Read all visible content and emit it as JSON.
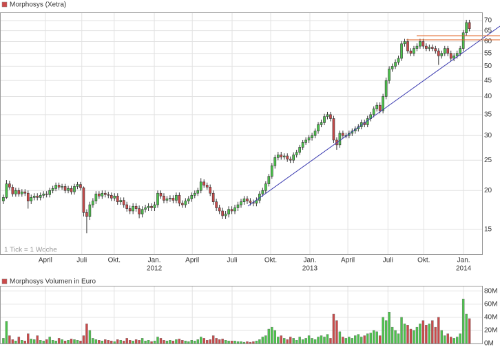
{
  "chart_data": [
    {
      "type": "candlestick",
      "title": "Morphosys (Xetra)",
      "annotation": "1 Tick = 1 Woche",
      "log_scale": true,
      "grid": true,
      "up_color": "#4cc44c",
      "down_color": "#cc4a4a",
      "xlim": [
        -1.1,
        155.1
      ],
      "xticks": [
        {
          "value": 13.6,
          "label": "April"
        },
        {
          "value": 25.4,
          "label": "Juli"
        },
        {
          "value": 35.9,
          "label": "Okt."
        },
        {
          "value": 48.9,
          "label": "Jan."
        },
        {
          "value": 61.2,
          "label": "April"
        },
        {
          "value": 74.1,
          "label": "Juli"
        },
        {
          "value": 86.6,
          "label": "Okt."
        },
        {
          "value": 99.3,
          "label": "Jan."
        },
        {
          "value": 111.6,
          "label": "April"
        },
        {
          "value": 124.6,
          "label": "Juli"
        },
        {
          "value": 136.2,
          "label": "Okt."
        },
        {
          "value": 149.1,
          "label": "Jan."
        }
      ],
      "year_labels": [
        {
          "value": 48.9,
          "label": "2012"
        },
        {
          "value": 99.3,
          "label": "2013"
        },
        {
          "value": 149.1,
          "label": "2014"
        }
      ],
      "ylim": [
        12.5,
        74.4
      ],
      "yticks": [
        15,
        20,
        25,
        30,
        35,
        40,
        45,
        50,
        55,
        60,
        65,
        70
      ],
      "open": [
        18.5,
        19,
        21,
        20.5,
        19.5,
        20,
        19.5,
        19.8,
        19.6,
        18.5,
        19,
        19.2,
        19,
        19.3,
        19.5,
        19.4,
        20,
        20.3,
        20.8,
        20.5,
        20.6,
        20,
        20.3,
        19.8,
        20.6,
        20.9,
        20.4,
        17,
        16.5,
        18,
        18.5,
        19.5,
        19.2,
        19.6,
        19.4,
        19.3,
        18.9,
        19.2,
        18.4,
        18.6,
        18,
        17.5,
        17.2,
        17.8,
        17.5,
        16.8,
        17.4,
        17.6,
        17.8,
        17.6,
        18,
        19.6,
        19.2,
        18.6,
        18.8,
        18.9,
        18.6,
        19.3,
        18.2,
        18,
        18.5,
        18.8,
        19.3,
        19.6,
        20,
        21.3,
        20.8,
        20.5,
        19.6,
        18.4,
        17.6,
        17.2,
        16.6,
        16.8,
        17.4,
        17.2,
        17.6,
        18,
        18.4,
        18.8,
        18.5,
        18.3,
        18.2,
        18.6,
        19.5,
        20,
        21,
        22.2,
        24,
        25.5,
        26,
        25.6,
        25.8,
        25.2,
        25,
        26,
        26.5,
        27.5,
        28.5,
        29,
        29.5,
        30,
        31,
        32.5,
        33,
        34.5,
        35,
        34,
        29,
        28,
        30.5,
        30,
        30,
        30.5,
        31,
        31.5,
        32,
        33,
        32.5,
        34,
        35,
        36.5,
        37.5,
        36,
        40,
        45,
        49,
        50,
        51.5,
        53,
        59,
        60,
        56,
        55,
        57,
        58,
        60,
        58,
        57,
        57.5,
        57,
        56,
        54,
        55,
        57,
        55,
        53,
        54,
        55,
        57,
        64,
        69
      ],
      "high": [
        19.4,
        21.6,
        21.5,
        20.9,
        20.4,
        20.4,
        20.2,
        20.2,
        20,
        19.4,
        19.6,
        19.6,
        19.7,
        19.9,
        19.9,
        20.4,
        20.7,
        21.2,
        21.2,
        21,
        21,
        20.7,
        20.7,
        21,
        21.3,
        21.3,
        20.6,
        17.4,
        18.4,
        18.9,
        19.9,
        19.9,
        20,
        20,
        19.8,
        19.7,
        19.6,
        19.6,
        19,
        19,
        18.4,
        17.9,
        18.2,
        18.2,
        17.9,
        17.8,
        18,
        18.2,
        18.2,
        18.4,
        20,
        20,
        19.6,
        19.2,
        19.3,
        19.3,
        19.7,
        19.7,
        18.6,
        18.9,
        19.2,
        19.7,
        20,
        20.4,
        21.9,
        21.7,
        21.2,
        20.9,
        20,
        18.8,
        18,
        17.6,
        17.2,
        17.8,
        17.8,
        18,
        18.4,
        18.8,
        19.2,
        19.2,
        18.9,
        18.7,
        19,
        19.9,
        20.4,
        21.4,
        22.6,
        24.5,
        26,
        26.6,
        26.6,
        26.3,
        26.3,
        25.7,
        26.5,
        27,
        28,
        29,
        29.6,
        30.1,
        30.6,
        31.6,
        33.1,
        33.7,
        35.2,
        35.7,
        35.7,
        34.7,
        29.6,
        31.1,
        31.1,
        30.6,
        31.1,
        31.6,
        32.1,
        32.6,
        33.7,
        33.7,
        34.7,
        35.7,
        37.2,
        38.3,
        38.3,
        40.8,
        46,
        50,
        51,
        52.6,
        54.1,
        60.2,
        61.2,
        61.2,
        57.1,
        58.1,
        59.2,
        61.2,
        61.2,
        59.2,
        58.7,
        58.7,
        58.1,
        57.1,
        56.1,
        58.1,
        58.1,
        56.1,
        55.1,
        56.1,
        58.1,
        65.3,
        70.4,
        70.4
      ],
      "low": [
        18.1,
        18.8,
        20.1,
        19.1,
        19.1,
        19.1,
        19.1,
        19.2,
        17.5,
        18.1,
        18.6,
        18.6,
        18.6,
        18.9,
        19,
        19,
        19.6,
        19.9,
        20.1,
        20.1,
        19.6,
        19.6,
        19.4,
        19.4,
        20.2,
        20,
        16.5,
        14.6,
        16.1,
        17.6,
        18.1,
        18.8,
        18.8,
        19,
        18.9,
        18.5,
        18.5,
        18,
        18,
        17.6,
        17.1,
        16.8,
        16.8,
        17.1,
        16.3,
        16.4,
        17,
        17.2,
        17.2,
        17.2,
        17.6,
        18.8,
        18.2,
        18.2,
        18.4,
        18.2,
        18.2,
        17.8,
        17.6,
        17.6,
        18.1,
        18.4,
        18.9,
        19.2,
        19.6,
        20.4,
        20.1,
        19.2,
        18,
        17.2,
        16.8,
        16.2,
        16.2,
        16.4,
        16.8,
        16.8,
        17.2,
        17.6,
        18,
        18.1,
        17.9,
        17.8,
        17.8,
        18.2,
        19.1,
        19.6,
        20.6,
        21.8,
        23.5,
        25,
        25.1,
        25.1,
        24.7,
        24.5,
        24.5,
        25.5,
        26,
        27,
        28,
        28.4,
        28.9,
        29.4,
        30.4,
        31.9,
        32.4,
        33.8,
        33.3,
        28.4,
        27,
        27.4,
        29.4,
        29.4,
        29.4,
        29.9,
        30.4,
        30.9,
        31.4,
        31.9,
        31.9,
        33.3,
        34.3,
        35.8,
        35.3,
        35.3,
        39.2,
        44,
        48,
        49,
        50.5,
        52,
        57.8,
        54.9,
        53.9,
        53.9,
        55.9,
        56.9,
        56.9,
        55.9,
        55.9,
        55.9,
        54.9,
        50.5,
        52.9,
        53.9,
        53.9,
        51.9,
        51.9,
        52.9,
        53.9,
        55.9,
        62.7,
        64.7
      ],
      "close": [
        19,
        21,
        20.5,
        19.5,
        20,
        19.5,
        19.8,
        19.6,
        18.5,
        19,
        19.2,
        19,
        19.3,
        19.5,
        19.4,
        20,
        20.3,
        20.8,
        20.5,
        20.6,
        20,
        20.3,
        19.8,
        20.6,
        20.9,
        20.4,
        17,
        16.5,
        18,
        18.5,
        19.5,
        19.2,
        19.6,
        19.4,
        19.3,
        18.9,
        19.2,
        18.4,
        18.6,
        18,
        17.5,
        17.2,
        17.8,
        17.5,
        16.8,
        17.4,
        17.6,
        17.8,
        17.6,
        18,
        19.6,
        19.2,
        18.6,
        18.8,
        18.9,
        18.6,
        19.3,
        18.2,
        18,
        18.5,
        18.8,
        19.3,
        19.6,
        20,
        21.3,
        20.8,
        20.5,
        19.6,
        18.4,
        17.6,
        17.2,
        16.6,
        16.8,
        17.4,
        17.2,
        17.6,
        18,
        18.4,
        18.8,
        18.5,
        18.3,
        18.2,
        18.6,
        19.5,
        20,
        21,
        22.2,
        24,
        25.5,
        26,
        25.6,
        25.8,
        25.2,
        25,
        26,
        26.5,
        27.5,
        28.5,
        29,
        29.5,
        30,
        31,
        32.5,
        33,
        34.5,
        35,
        34,
        29,
        28,
        30.5,
        30,
        30,
        30.5,
        31,
        31.5,
        32,
        33,
        32.5,
        34,
        35,
        36.5,
        37.5,
        36,
        40,
        45,
        49,
        50,
        51.5,
        53,
        59,
        60,
        56,
        55,
        57,
        58,
        60,
        58,
        57,
        57.5,
        57,
        56,
        54,
        55,
        57,
        55,
        53,
        54,
        55,
        57,
        64,
        69,
        66
      ]
    },
    {
      "type": "bar",
      "title": "Morphosys Volumen in Euro",
      "grid": true,
      "xlim": [
        -1.1,
        155.1
      ],
      "ylim": [
        0,
        88
      ],
      "yticks": [
        {
          "value": 0,
          "label": "0M"
        },
        {
          "value": 20,
          "label": "20M"
        },
        {
          "value": 40,
          "label": "40M"
        },
        {
          "value": 60,
          "label": "60M"
        },
        {
          "value": 80,
          "label": "80M"
        }
      ],
      "values": [
        8,
        34,
        12,
        6,
        4,
        10,
        5,
        4,
        15,
        7,
        6,
        12,
        5,
        4,
        6,
        10,
        5,
        4,
        8,
        6,
        4,
        5,
        7,
        6,
        5,
        4,
        12,
        30,
        20,
        8,
        6,
        5,
        4,
        6,
        5,
        4,
        3,
        6,
        5,
        4,
        8,
        5,
        4,
        6,
        5,
        8,
        4,
        5,
        3,
        4,
        10,
        8,
        5,
        4,
        5,
        4,
        6,
        7,
        5,
        4,
        3,
        5,
        4,
        6,
        10,
        8,
        5,
        6,
        12,
        8,
        6,
        7,
        5,
        4,
        4,
        4,
        3,
        3,
        2,
        3,
        2,
        3,
        4,
        6,
        10,
        12,
        22,
        25,
        20,
        10,
        12,
        8,
        6,
        10,
        8,
        5,
        10,
        6,
        8,
        12,
        8,
        6,
        10,
        12,
        10,
        14,
        8,
        45,
        35,
        18,
        10,
        8,
        10,
        8,
        12,
        14,
        10,
        12,
        15,
        16,
        20,
        18,
        12,
        40,
        35,
        48,
        25,
        20,
        15,
        40,
        30,
        28,
        22,
        20,
        25,
        30,
        35,
        28,
        30,
        35,
        25,
        40,
        20,
        12,
        15,
        10,
        8,
        10,
        15,
        68,
        45,
        38
      ]
    }
  ]
}
